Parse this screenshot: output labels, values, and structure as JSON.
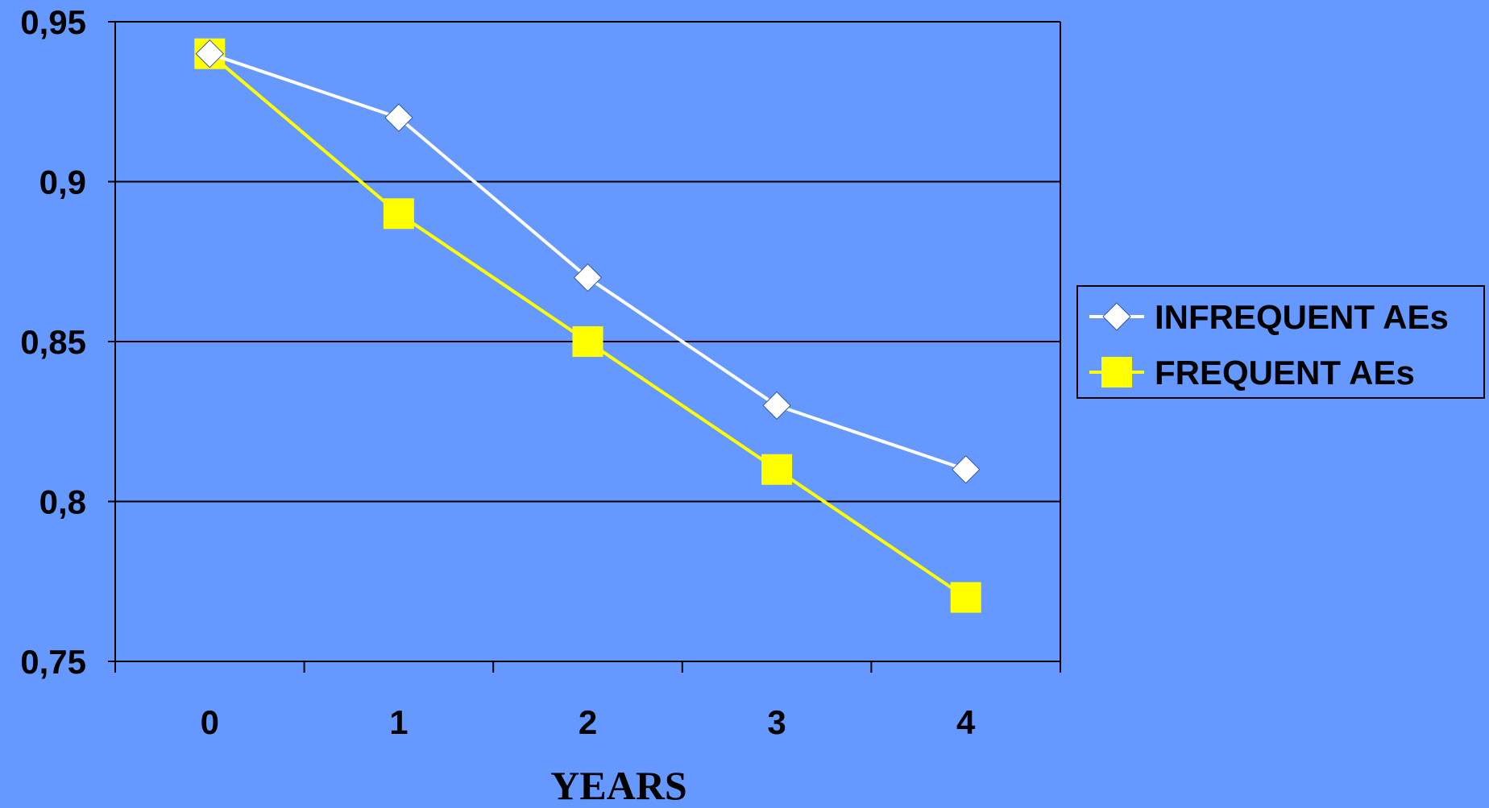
{
  "chart_data": {
    "type": "line",
    "title": "",
    "xlabel": "YEARS",
    "ylabel": "",
    "categories": [
      "0",
      "1",
      "2",
      "3",
      "4"
    ],
    "y_tick_labels": [
      "0,75",
      "0,8",
      "0,85",
      "0,9",
      "0,95"
    ],
    "ylim": [
      0.75,
      0.95
    ],
    "y_ticks": [
      0.75,
      0.8,
      0.85,
      0.9,
      0.95
    ],
    "grid": "horizontal",
    "legend_position": "right",
    "series": [
      {
        "name": "INFREQUENT AEs",
        "values": [
          0.94,
          0.92,
          0.87,
          0.83,
          0.81
        ],
        "color": "#FFFFFF",
        "marker": "diamond"
      },
      {
        "name": "FREQUENT AEs",
        "values": [
          0.94,
          0.89,
          0.85,
          0.81,
          0.77
        ],
        "color": "#FFFF00",
        "marker": "square"
      }
    ]
  },
  "colors": {
    "background": "#6699FF",
    "axis": "#000000"
  }
}
